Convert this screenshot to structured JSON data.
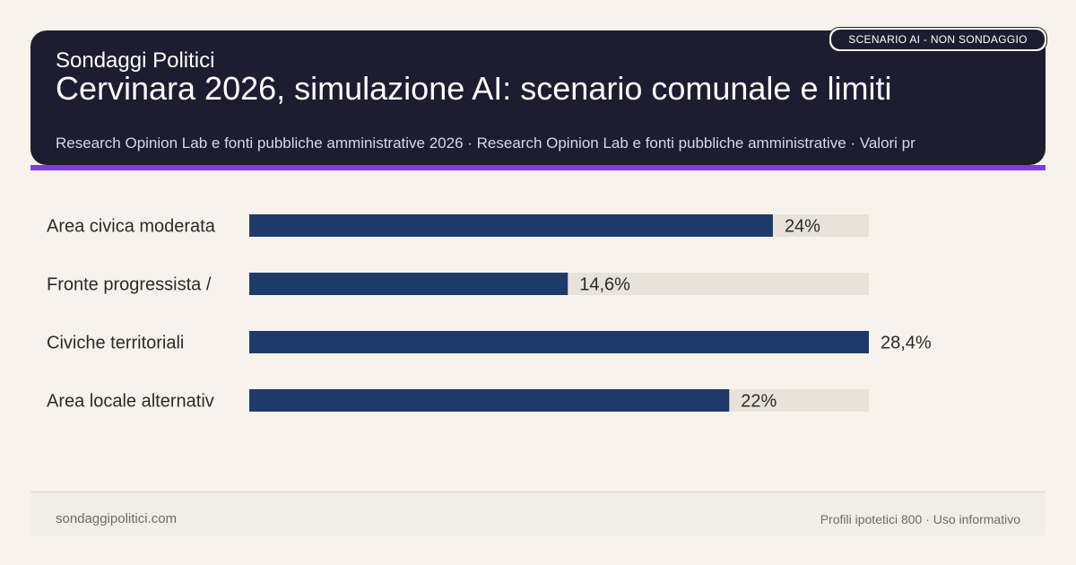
{
  "header": {
    "brand": "Sondaggi Politici",
    "title": "Cervinara 2026, simulazione AI: scenario comunale e limiti",
    "subtitle": "Research Opinion Lab e fonti pubbliche amministrative 2026 · Research Opinion Lab e fonti pubbliche amministrative · Valori pr",
    "badge": "SCENARIO AI - NON SONDAGGIO"
  },
  "colors": {
    "header_bg": "#1d1c30",
    "accent": "#7c3aed",
    "bar": "#1e3a6a",
    "track": "#e9e2da",
    "background": "#f7f3ec"
  },
  "chart_data": {
    "type": "bar",
    "orientation": "horizontal",
    "categories": [
      "Area civica moderata",
      "Fronte progressista /",
      "Civiche territoriali",
      "Area locale alternativ"
    ],
    "values": [
      24,
      14.6,
      28.4,
      22
    ],
    "value_labels": [
      "24%",
      "14,6%",
      "28,4%",
      "22%"
    ],
    "xlim": [
      0,
      28.4
    ],
    "grid": false,
    "legend": "none"
  },
  "footer": {
    "site": "sondaggipolitici.com",
    "note": "Profili ipotetici 800 · Uso informativo"
  }
}
